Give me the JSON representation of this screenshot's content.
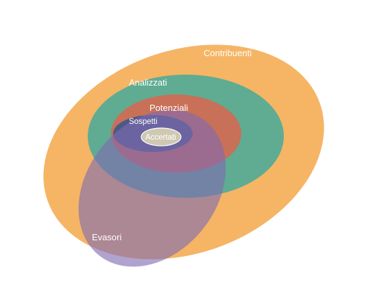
{
  "diagram": {
    "sets": [
      {
        "id": "contribuenti",
        "label": "Contribuenti",
        "color": "#f5b565"
      },
      {
        "id": "analizzati",
        "label": "Analizzati",
        "color": "#5fac92"
      },
      {
        "id": "potenziali",
        "label": "Potenziali",
        "color": "#c87058"
      },
      {
        "id": "sospetti",
        "label": "Sospetti",
        "color": "#4a5a86"
      },
      {
        "id": "accertati",
        "label": "Accertati",
        "color": "#c9c2ae"
      },
      {
        "id": "evasori",
        "label": "Evasori",
        "color": "#8a6ea0"
      }
    ]
  }
}
